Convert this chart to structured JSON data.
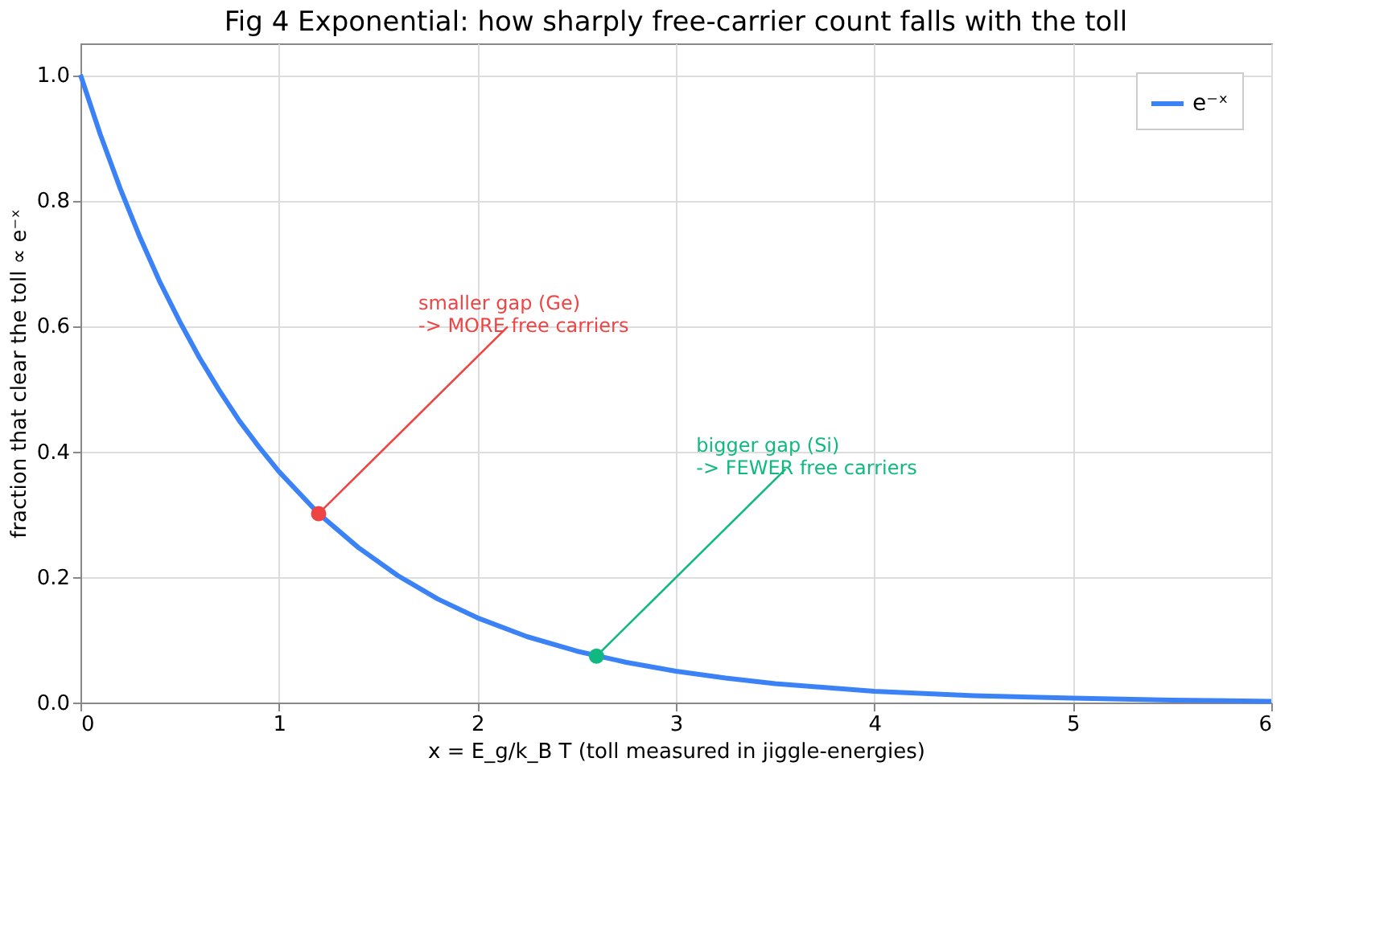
{
  "chart_data": {
    "type": "line",
    "title": "Fig 4  Exponential: how sharply free-carrier count falls with the toll",
    "xlabel": "x = E_g/k_B T   (toll measured in jiggle-energies)",
    "ylabel": "fraction that clear the toll   ∝ e⁻ˣ",
    "series": [
      {
        "name": "e⁻ˣ",
        "color": "#3b82f6",
        "marker": "none",
        "line_style": "solid",
        "x": [
          0,
          0.1,
          0.2,
          0.3,
          0.4,
          0.5,
          0.6,
          0.7,
          0.8,
          0.9,
          1.0,
          1.2,
          1.4,
          1.6,
          1.8,
          2.0,
          2.25,
          2.5,
          2.75,
          3.0,
          3.25,
          3.5,
          3.75,
          4.0,
          4.5,
          5.0,
          5.5,
          6.0
        ],
        "values": [
          1.0,
          0.905,
          0.819,
          0.741,
          0.67,
          0.607,
          0.549,
          0.497,
          0.449,
          0.407,
          0.368,
          0.301,
          0.247,
          0.202,
          0.165,
          0.135,
          0.105,
          0.082,
          0.064,
          0.05,
          0.039,
          0.03,
          0.024,
          0.018,
          0.011,
          0.007,
          0.004,
          0.002
        ]
      },
      {
        "type": "scatter",
        "color": "#ef4444",
        "marker": "circle",
        "x": [
          1.2
        ],
        "values": [
          0.301
        ]
      },
      {
        "type": "scatter",
        "color": "#10b981",
        "marker": "circle",
        "x": [
          2.6
        ],
        "values": [
          0.074
        ]
      }
    ],
    "annotations": [
      {
        "text": "smaller gap (Ge)\n-> MORE free carriers",
        "x": 1.2,
        "y": 0.301
      },
      {
        "text": "bigger gap (Si)\n-> FEWER free carriers",
        "x": 2.6,
        "y": 0.074
      }
    ],
    "xlim": [
      0,
      6
    ],
    "xticks": [
      0,
      1,
      2,
      3,
      4,
      5,
      6
    ],
    "ylim": [
      0,
      1.05
    ],
    "yticks": [
      {
        "value": 0,
        "label": "0.0"
      },
      {
        "value": 0.2,
        "label": "0.2"
      },
      {
        "value": 0.4,
        "label": "0.4"
      },
      {
        "value": 0.6,
        "label": "0.6"
      },
      {
        "value": 0.8,
        "label": "0.8"
      },
      {
        "value": 1.0,
        "label": "1.0"
      }
    ],
    "grid": true,
    "legend": "top right"
  }
}
